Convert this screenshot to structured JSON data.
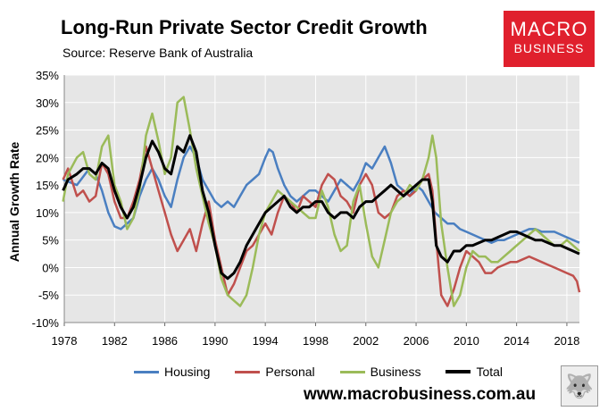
{
  "header": {
    "title": "Long-Run Private Sector Credit Growth",
    "subtitle": "Source: Reserve Bank of Australia"
  },
  "logo": {
    "line1": "MACRO",
    "line2": "BUSINESS",
    "color": "#e0202d"
  },
  "footer": {
    "url": "www.macrobusiness.com.au",
    "badge_icon": "wolf-icon"
  },
  "chart_data": {
    "type": "line",
    "title": "Long-Run Private Sector Credit Growth",
    "xlabel": "",
    "ylabel": "Annual Growth Rate",
    "xlim": [
      1978,
      2019
    ],
    "ylim": [
      -10,
      35
    ],
    "xticks": [
      "1978",
      "1982",
      "1986",
      "1990",
      "1994",
      "1998",
      "2002",
      "2006",
      "2010",
      "2014",
      "2018"
    ],
    "yticks": [
      "35%",
      "30%",
      "25%",
      "20%",
      "15%",
      "10%",
      "5%",
      "0%",
      "-5%",
      "-10%"
    ],
    "grid": true,
    "legend": "bottom",
    "series": [
      {
        "name": "Housing",
        "color": "#4a7fc1",
        "x": [
          1977.9,
          1979,
          1980,
          1980.5,
          1981,
          1981.5,
          1982,
          1982.5,
          1983,
          1983.5,
          1984,
          1984.5,
          1985,
          1985.5,
          1986,
          1986.5,
          1987,
          1987.5,
          1988,
          1988.5,
          1989,
          1989.5,
          1990,
          1990.5,
          1991,
          1991.5,
          1992,
          1992.5,
          1993,
          1993.5,
          1994,
          1994.3,
          1994.6,
          1995,
          1995.5,
          1996,
          1996.5,
          1997,
          1997.5,
          1998,
          1998.5,
          1999,
          1999.5,
          2000,
          2000.5,
          2001,
          2001.5,
          2002,
          2002.5,
          2003,
          2003.5,
          2004,
          2004.5,
          2005,
          2005.5,
          2006,
          2006.5,
          2007,
          2007.5,
          2008,
          2008.5,
          2009,
          2009.5,
          2010,
          2010.5,
          2011,
          2011.5,
          2012,
          2012.5,
          2013,
          2013.5,
          2014,
          2014.5,
          2015,
          2015.5,
          2016,
          2016.5,
          2017,
          2017.5,
          2018,
          2018.5,
          2019
        ],
        "y": [
          16,
          15,
          18,
          17,
          14,
          10,
          7.5,
          7,
          8,
          9,
          13,
          16,
          18,
          16,
          13,
          11,
          16,
          20,
          22,
          20,
          16,
          14,
          12,
          11,
          12,
          11,
          13,
          15,
          16,
          17,
          20,
          21.5,
          21,
          18,
          15,
          13,
          12,
          13,
          14,
          14,
          13,
          12,
          14,
          16,
          15,
          14,
          16,
          19,
          18,
          20,
          22,
          19,
          15,
          14,
          13,
          15,
          14,
          12,
          10,
          9,
          8,
          8,
          7,
          6.5,
          6,
          5.5,
          5,
          4.5,
          5,
          5,
          5.5,
          6,
          6.5,
          7,
          7,
          6.5,
          6.5,
          6.5,
          6,
          5.5,
          5,
          4.5
        ]
      },
      {
        "name": "Personal",
        "color": "#c0504d",
        "x": [
          1977.9,
          1978.3,
          1979,
          1979.5,
          1980,
          1980.5,
          1981,
          1981.5,
          1982,
          1982.5,
          1983,
          1983.5,
          1984,
          1984.5,
          1985,
          1985.5,
          1986,
          1986.5,
          1987,
          1987.5,
          1988,
          1988.5,
          1989,
          1989.5,
          1990,
          1990.5,
          1991,
          1991.5,
          1992,
          1992.5,
          1993,
          1993.5,
          1994,
          1994.5,
          1995,
          1995.5,
          1996,
          1996.5,
          1997,
          1997.5,
          1998,
          1998.5,
          1999,
          1999.5,
          2000,
          2000.5,
          2001,
          2001.5,
          2002,
          2002.5,
          2003,
          2003.5,
          2004,
          2004.5,
          2005,
          2005.5,
          2006,
          2006.5,
          2007,
          2007.3,
          2007.6,
          2008,
          2008.5,
          2009,
          2009.5,
          2010,
          2010.5,
          2011,
          2011.5,
          2012,
          2012.5,
          2013,
          2013.5,
          2014,
          2014.5,
          2015,
          2015.5,
          2016,
          2016.5,
          2017,
          2017.5,
          2018,
          2018.5,
          2018.8,
          2019
        ],
        "y": [
          16,
          18,
          13,
          14,
          12,
          13,
          19,
          17,
          12,
          9,
          9,
          12,
          16,
          22,
          18,
          14,
          10,
          6,
          3,
          5,
          7,
          3,
          8,
          12,
          5,
          0,
          -5,
          -3,
          0,
          3,
          4,
          6,
          8,
          6,
          10,
          13,
          12,
          10,
          13,
          12,
          11,
          15,
          17,
          16,
          13,
          12,
          10,
          15,
          17,
          15,
          10,
          9,
          10,
          13,
          14,
          13,
          14,
          16,
          17,
          14,
          5,
          -5,
          -7,
          -4,
          0,
          3,
          2,
          1,
          -1,
          -1,
          0,
          0.5,
          1,
          1,
          1.5,
          2,
          1.5,
          1,
          0.5,
          0,
          -0.5,
          -1,
          -1.5,
          -2.5,
          -4.5
        ]
      },
      {
        "name": "Business",
        "color": "#9bbb59",
        "x": [
          1977.9,
          1978.3,
          1979,
          1979.5,
          1980,
          1980.5,
          1981,
          1981.5,
          1982,
          1982.5,
          1983,
          1983.5,
          1984,
          1984.5,
          1985,
          1985.5,
          1986,
          1986.5,
          1987,
          1987.5,
          1988,
          1988.5,
          1989,
          1989.5,
          1990,
          1990.5,
          1991,
          1991.5,
          1992,
          1992.5,
          1993,
          1993.5,
          1994,
          1994.5,
          1995,
          1995.5,
          1996,
          1996.5,
          1997,
          1997.5,
          1998,
          1998.5,
          1999,
          1999.5,
          2000,
          2000.5,
          2001,
          2001.5,
          2002,
          2002.5,
          2003,
          2003.5,
          2004,
          2004.5,
          2005,
          2005.5,
          2006,
          2006.5,
          2007,
          2007.3,
          2007.6,
          2008,
          2008.5,
          2009,
          2009.5,
          2010,
          2010.5,
          2011,
          2011.5,
          2012,
          2012.5,
          2013,
          2013.5,
          2014,
          2014.5,
          2015,
          2015.5,
          2016,
          2016.5,
          2017,
          2017.5,
          2018,
          2018.5,
          2019
        ],
        "y": [
          12,
          17,
          20,
          21,
          17,
          16,
          22,
          24,
          15,
          12,
          7,
          9,
          14,
          24,
          28,
          23,
          17,
          20,
          30,
          31,
          25,
          18,
          13,
          8,
          4,
          -2,
          -5,
          -6,
          -7,
          -5,
          0,
          6,
          10,
          12,
          14,
          13,
          12,
          11,
          10,
          9,
          9,
          14,
          11,
          6,
          3,
          4,
          12,
          15,
          8,
          2,
          0,
          5,
          10,
          12,
          13,
          15,
          14,
          16,
          20,
          24,
          20,
          8,
          0,
          -7,
          -5,
          0,
          3,
          2,
          2,
          1,
          1,
          2,
          3,
          4,
          5,
          6,
          7,
          6,
          5,
          4,
          4,
          5,
          4,
          3
        ]
      },
      {
        "name": "Total",
        "color": "#000000",
        "x": [
          1977.9,
          1978.3,
          1979,
          1979.5,
          1980,
          1980.5,
          1981,
          1981.5,
          1982,
          1982.5,
          1983,
          1983.5,
          1984,
          1984.5,
          1985,
          1985.5,
          1986,
          1986.5,
          1987,
          1987.5,
          1988,
          1988.5,
          1989,
          1989.5,
          1990,
          1990.5,
          1991,
          1991.5,
          1992,
          1992.5,
          1993,
          1993.5,
          1994,
          1994.5,
          1995,
          1995.5,
          1996,
          1996.5,
          1997,
          1997.5,
          1998,
          1998.5,
          1999,
          1999.5,
          2000,
          2000.5,
          2001,
          2001.5,
          2002,
          2002.5,
          2003,
          2003.5,
          2004,
          2004.5,
          2005,
          2005.5,
          2006,
          2006.5,
          2007,
          2007.3,
          2007.6,
          2008,
          2008.5,
          2009,
          2009.5,
          2010,
          2010.5,
          2011,
          2011.5,
          2012,
          2012.5,
          2013,
          2013.5,
          2014,
          2014.5,
          2015,
          2015.5,
          2016,
          2016.5,
          2017,
          2017.5,
          2018,
          2018.5,
          2019
        ],
        "y": [
          14,
          16,
          17,
          18,
          18,
          17,
          19,
          18,
          14,
          11,
          9,
          11,
          15,
          20,
          23,
          21,
          18,
          17,
          22,
          21,
          24,
          21,
          14,
          10,
          4,
          -1,
          -2,
          -1,
          1,
          4,
          6,
          8,
          10,
          11,
          12,
          13,
          11,
          10,
          11,
          11,
          12,
          12,
          10,
          9,
          10,
          10,
          9,
          11,
          12,
          12,
          13,
          14,
          15,
          14,
          13,
          14,
          15,
          16,
          16,
          12,
          4,
          2,
          1,
          3,
          3,
          4,
          4,
          4.5,
          5,
          5,
          5.5,
          6,
          6.5,
          6.5,
          6,
          5.5,
          5,
          5,
          4.5,
          4,
          4,
          3.5,
          3,
          2.5
        ]
      }
    ]
  }
}
